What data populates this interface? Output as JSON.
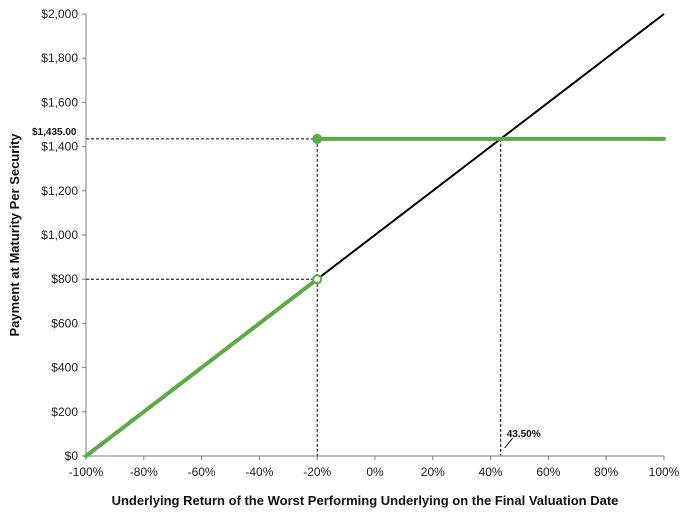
{
  "chart_data": {
    "type": "line",
    "xlabel": "Underlying Return of the Worst Performing Underlying on the Final Valuation Date",
    "ylabel": "Payment at Maturity Per Security",
    "xlim": [
      -100,
      100
    ],
    "ylim": [
      0,
      2000
    ],
    "x_ticks": [
      -100,
      -80,
      -60,
      -40,
      -20,
      0,
      20,
      40,
      60,
      80,
      100
    ],
    "x_tick_labels": [
      "-100%",
      "-80%",
      "-60%",
      "-40%",
      "-20%",
      "0%",
      "20%",
      "40%",
      "60%",
      "80%",
      "100%"
    ],
    "y_ticks": [
      0,
      200,
      400,
      600,
      800,
      1000,
      1200,
      1400,
      1600,
      1800,
      2000
    ],
    "y_tick_labels": [
      "$0",
      "$200",
      "$400",
      "$600",
      "$800",
      "$1,000",
      "$1,200",
      "$1,400",
      "$1,600",
      "$1,800",
      "$2,000"
    ],
    "grid": false,
    "legend": "none",
    "series": [
      {
        "color": "#000000",
        "points": [
          [
            -100,
            0
          ],
          [
            100,
            2000
          ]
        ]
      },
      {
        "color": "#5aac44",
        "segments": [
          [
            [
              -100,
              0
            ],
            [
              -20,
              800
            ]
          ],
          [
            [
              -20,
              1435
            ],
            [
              100,
              1435
            ]
          ]
        ],
        "open_marker": [
          -20,
          800
        ],
        "closed_marker": [
          -20,
          1435
        ]
      }
    ],
    "reference_lines": [
      {
        "from": [
          -100,
          1435
        ],
        "to": [
          -20,
          1435
        ]
      },
      {
        "from": [
          -20,
          1435
        ],
        "to": [
          -20,
          0
        ]
      },
      {
        "from": [
          -100,
          800
        ],
        "to": [
          -20,
          800
        ]
      },
      {
        "from": [
          43.5,
          1435
        ],
        "to": [
          43.5,
          0
        ]
      }
    ],
    "annotations": [
      {
        "text": "$1,435.00",
        "x": -100,
        "y": 1435
      },
      {
        "text": "43.50%",
        "x": 43.5,
        "y": 100
      }
    ]
  }
}
